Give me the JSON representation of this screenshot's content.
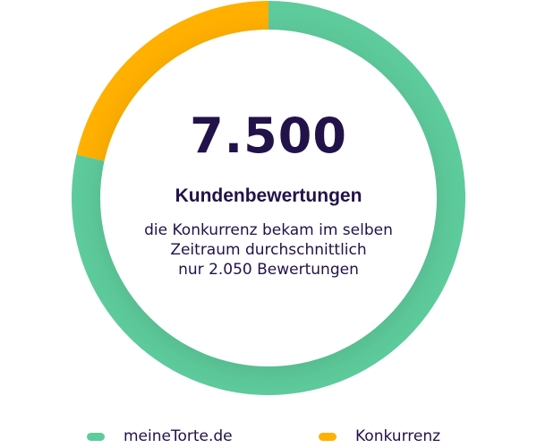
{
  "center": {
    "value": "7.500",
    "label": "Kundenbewertungen",
    "desc_line1": "die Konkurrenz bekam im selben",
    "desc_line2": "Zeitraum durchschnittlich",
    "desc_line3": "nur 2.050 Bewertungen"
  },
  "colors": {
    "green": "#5ecb9c",
    "yellow": "#ffb000",
    "text": "#22124a"
  },
  "chart_data": {
    "type": "pie",
    "donut": true,
    "series": [
      {
        "name": "meineTorte.de",
        "value": 7500,
        "color": "#5ecb9c"
      },
      {
        "name": "Konkurrenz",
        "value": 2050,
        "color": "#ffb000"
      }
    ],
    "legend_position": "bottom"
  }
}
